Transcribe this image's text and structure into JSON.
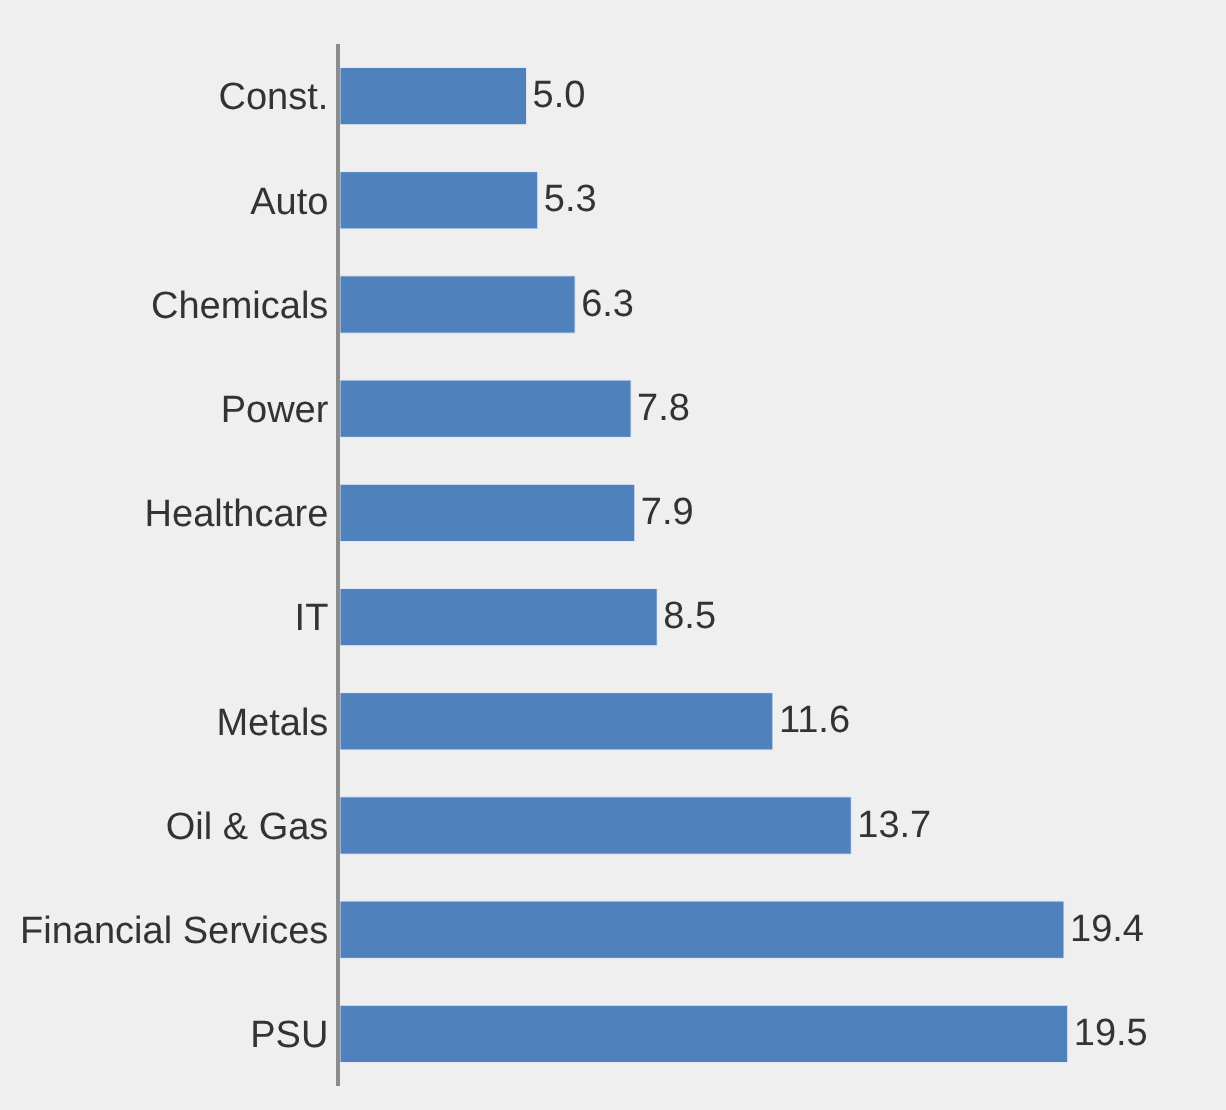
{
  "chart_data": {
    "type": "bar",
    "orientation": "horizontal",
    "categories": [
      "Const.",
      "Auto",
      "Chemicals",
      "Power",
      "Healthcare",
      "IT",
      "Metals",
      "Oil & Gas",
      "Financial Services",
      "PSU"
    ],
    "values": [
      5.0,
      5.3,
      6.3,
      7.8,
      7.9,
      8.5,
      11.6,
      13.7,
      19.4,
      19.5
    ],
    "value_labels": [
      "5.0",
      "5.3",
      "6.3",
      "7.8",
      "7.9",
      "8.5",
      "11.6",
      "13.7",
      "19.4",
      "19.5"
    ],
    "color": "#4f81bd",
    "legend": false
  }
}
